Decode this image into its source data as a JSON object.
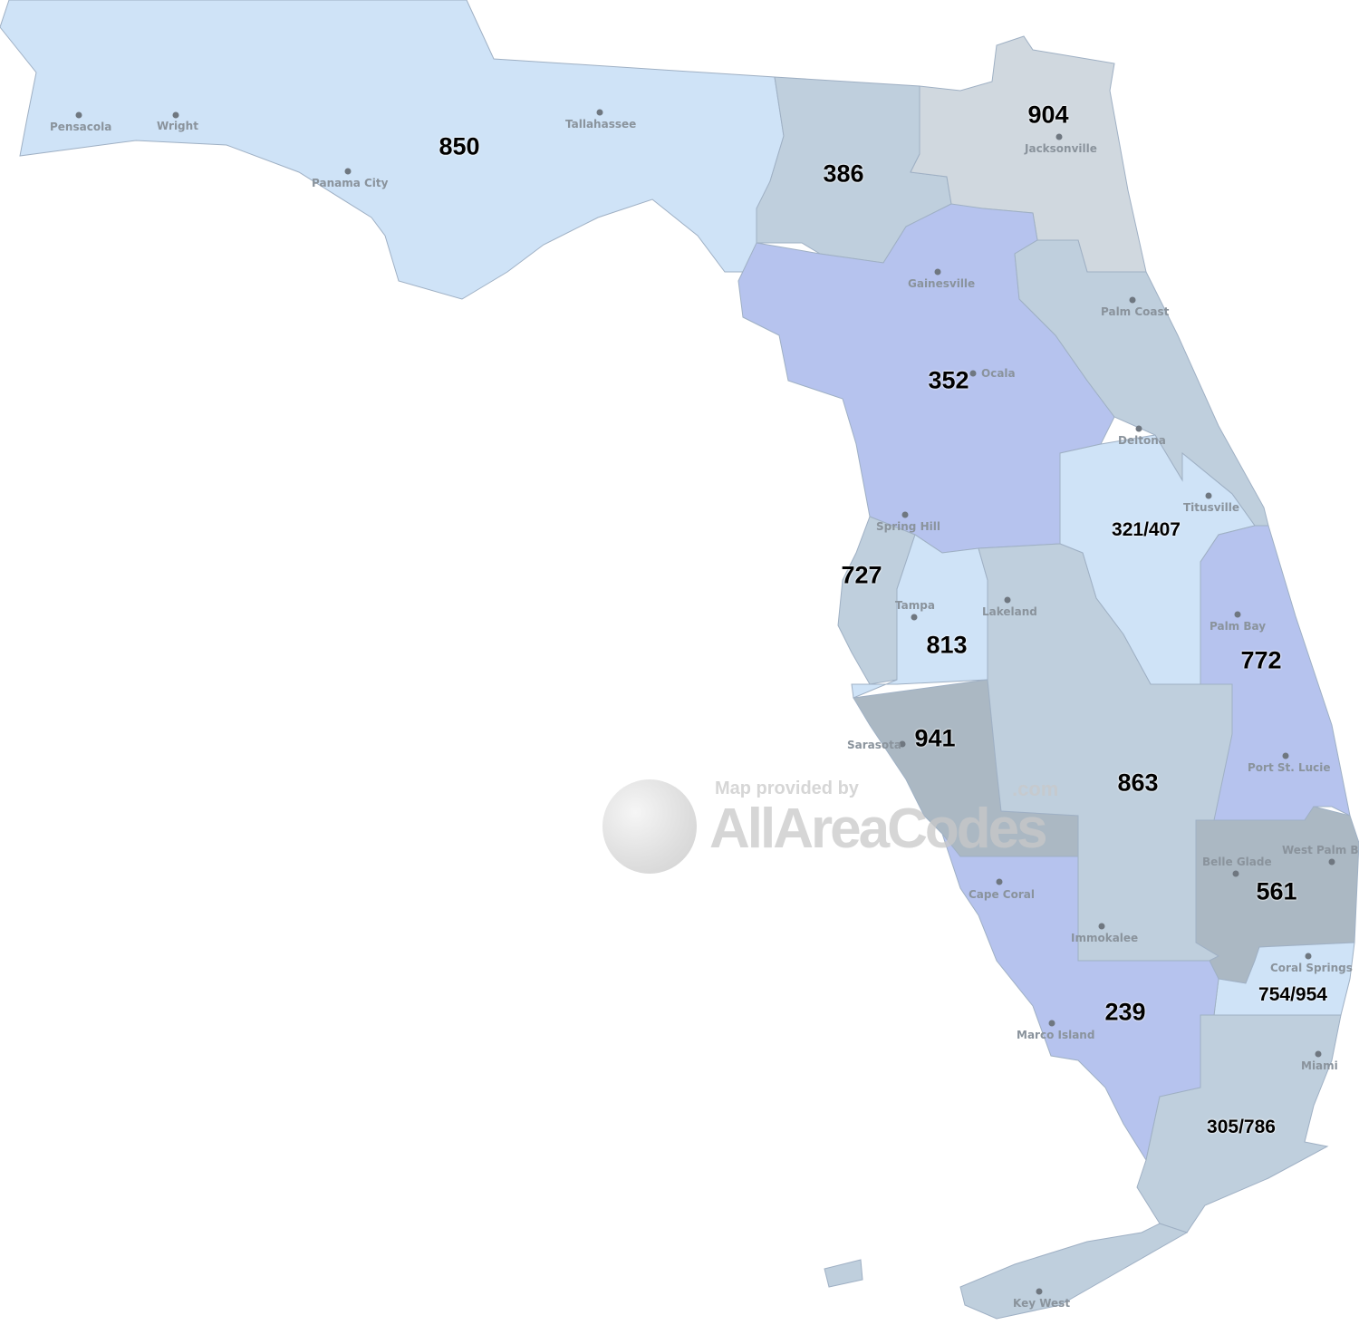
{
  "map": {
    "colors": {
      "light_blue": "#cfe3f7",
      "gray_blue": "#bfcfdd",
      "periwinkle": "#b6c3ee",
      "slate": "#abb8c3",
      "light_gray": "#d0d8df"
    },
    "area_codes": {
      "c850": "850",
      "c386": "386",
      "c904": "904",
      "c352": "352",
      "c321_407": "321/407",
      "c727": "727",
      "c813": "813",
      "c772": "772",
      "c941": "941",
      "c863": "863",
      "c561": "561",
      "c754_954": "754/954",
      "c239": "239",
      "c305_786": "305/786"
    },
    "cities": {
      "pensacola": "Pensacola",
      "wright": "Wright",
      "tallahassee": "Tallahassee",
      "panama_city": "Panama City",
      "jacksonville": "Jacksonville",
      "gainesville": "Gainesville",
      "palm_coast": "Palm Coast",
      "ocala": "Ocala",
      "deltona": "Deltona",
      "titusville": "Titusville",
      "spring_hill": "Spring Hill",
      "tampa": "Tampa",
      "lakeland": "Lakeland",
      "palm_bay": "Palm Bay",
      "sarasota": "Sarasota",
      "port_st_lucie": "Port St. Lucie",
      "belle_glade": "Belle Glade",
      "west_palm_beach": "West Palm Be",
      "cape_coral": "Cape Coral",
      "immokalee": "Immokalee",
      "coral_springs": "Coral Springs",
      "marco_island": "Marco Island",
      "miami": "Miami",
      "key_west": "Key West"
    },
    "watermark": {
      "small": "Map provided by",
      "big": "AllAreaCodes",
      "com": ".com"
    }
  }
}
